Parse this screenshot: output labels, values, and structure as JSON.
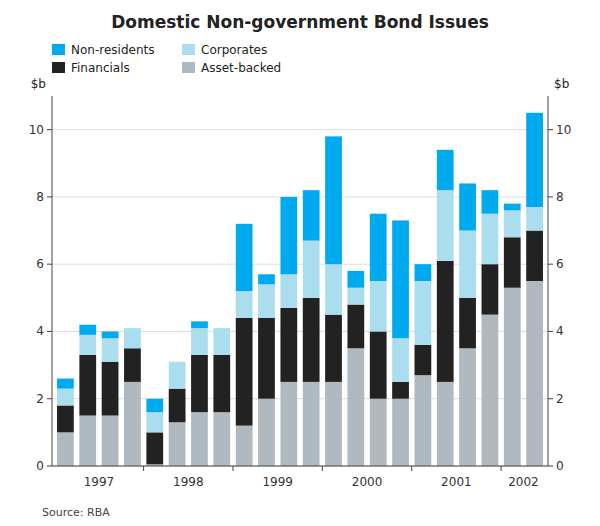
{
  "chart_data": {
    "type": "bar",
    "stacked": true,
    "title": "Domestic Non-government Bond Issues",
    "y_label": "$b",
    "y2_label": "$b",
    "annotations": [
      "Source: RBA"
    ],
    "categories": [
      "1997",
      "1997",
      "1997",
      "1997",
      "1998",
      "1998",
      "1998",
      "1998",
      "1999",
      "1999",
      "1999",
      "1999",
      "2000",
      "2000",
      "2000",
      "2000",
      "2001",
      "2001",
      "2001",
      "2001",
      "2002",
      "2002"
    ],
    "series": [
      {
        "name": "Asset-backed",
        "color": "#b0b8c0",
        "values": [
          1.0,
          1.5,
          1.5,
          2.5,
          0.05,
          1.3,
          1.6,
          1.6,
          1.2,
          2.0,
          2.5,
          2.5,
          2.5,
          3.5,
          2.0,
          2.0,
          2.7,
          2.5,
          3.5,
          4.5,
          5.3,
          5.5
        ]
      },
      {
        "name": "Financials",
        "color": "#222222",
        "values": [
          0.8,
          1.8,
          1.6,
          1.0,
          0.95,
          1.0,
          1.7,
          1.7,
          3.2,
          2.4,
          2.2,
          2.5,
          2.0,
          1.3,
          2.0,
          0.5,
          0.9,
          3.6,
          1.5,
          1.5,
          1.5,
          1.5
        ]
      },
      {
        "name": "Corporates",
        "color": "#aaddee",
        "values": [
          0.5,
          0.6,
          0.7,
          0.6,
          0.6,
          0.8,
          0.8,
          0.8,
          0.8,
          1.0,
          1.0,
          1.7,
          1.5,
          0.5,
          1.5,
          1.3,
          1.9,
          2.1,
          2.0,
          1.5,
          0.8,
          0.7
        ]
      },
      {
        "name": "Non-residents",
        "color": "#00aaee",
        "values": [
          0.3,
          0.3,
          0.2,
          0.0,
          0.4,
          0.0,
          0.2,
          0.0,
          2.0,
          0.3,
          2.3,
          1.5,
          3.8,
          0.5,
          2.0,
          3.5,
          0.5,
          1.2,
          1.4,
          0.7,
          0.2,
          2.8
        ]
      }
    ],
    "ylim": [
      0,
      11
    ],
    "yticks": [
      0,
      2,
      4,
      6,
      8,
      10
    ],
    "y2lim": [
      0,
      11
    ],
    "y2ticks": [
      0,
      2,
      4,
      6,
      8,
      10
    ],
    "grid": true,
    "legend": "upper left"
  }
}
